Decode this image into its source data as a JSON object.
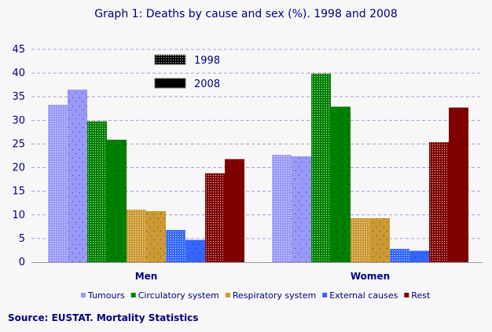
{
  "chart_data": {
    "type": "bar",
    "title": "Graph 1: Deaths by cause and sex (%). 1998 and 2008",
    "categories": [
      "Men",
      "Women"
    ],
    "causes": [
      "Tumours",
      "Circulatory system",
      "Respiratory system",
      "External causes",
      "Rest"
    ],
    "cause_colors": [
      "#9999f8",
      "#008000",
      "#cc9933",
      "#3366ff",
      "#800000"
    ],
    "years": [
      "1998",
      "2008"
    ],
    "series": [
      {
        "cause": "Tumours",
        "year": "1998",
        "values": [
          33.3,
          22.7
        ]
      },
      {
        "cause": "Tumours",
        "year": "2008",
        "values": [
          36.5,
          22.4
        ]
      },
      {
        "cause": "Circulatory system",
        "year": "1998",
        "values": [
          29.8,
          39.9
        ]
      },
      {
        "cause": "Circulatory system",
        "year": "2008",
        "values": [
          25.9,
          32.9
        ]
      },
      {
        "cause": "Respiratory system",
        "year": "1998",
        "values": [
          11.1,
          9.3
        ]
      },
      {
        "cause": "Respiratory system",
        "year": "2008",
        "values": [
          10.8,
          9.3
        ]
      },
      {
        "cause": "External causes",
        "year": "1998",
        "values": [
          6.8,
          2.8
        ]
      },
      {
        "cause": "External causes",
        "year": "2008",
        "values": [
          4.7,
          2.4
        ]
      },
      {
        "cause": "Rest",
        "year": "1998",
        "values": [
          18.8,
          25.4
        ]
      },
      {
        "cause": "Rest",
        "year": "2008",
        "values": [
          21.8,
          32.7
        ]
      }
    ],
    "ylim": [
      0,
      45
    ],
    "yticks": [
      0,
      5,
      10,
      15,
      20,
      25,
      30,
      35,
      40,
      45
    ],
    "grid": true,
    "legend_placement": "bottom"
  },
  "source": "Source: EUSTAT. Mortality Statistics"
}
